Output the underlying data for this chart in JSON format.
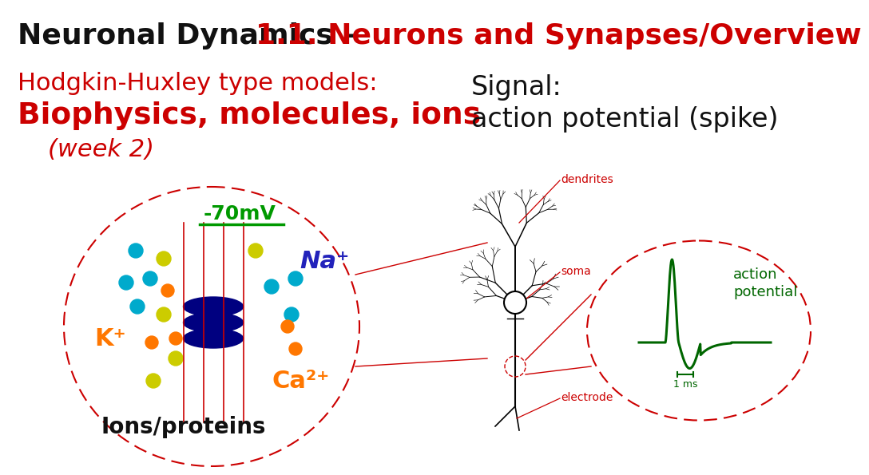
{
  "title_black": "Neuronal Dynamics – ",
  "title_red": "1.1. Neurons and Synapses/Overview",
  "subtitle_red1": "Hodgkin-Huxley type models:",
  "subtitle_red2": "Biophysics, molecules, ions",
  "subtitle_italic": "(week 2)",
  "signal_title": "Signal:",
  "signal_subtitle": "action potential (spike)",
  "ions_label": "Ions/proteins",
  "na_label": "Na⁺",
  "k_label": "K⁺",
  "ca_label": "Ca²⁺",
  "mv_label": "-70mV",
  "action_potential_label": "action\npotential",
  "ms_label": "1 ms",
  "dendrites_label": "dendrites",
  "soma_label": "soma",
  "electrode_label": "electrode",
  "bg_color": "#ffffff",
  "title_black_color": "#111111",
  "title_red_color": "#cc0000",
  "red_color": "#cc0000",
  "green_color": "#009900",
  "orange_color": "#ff7700",
  "blue_color": "#2222bb",
  "cyan_color": "#00aacc",
  "yellow_color": "#cccc00",
  "dark_green": "#006600",
  "navy": "#000080"
}
